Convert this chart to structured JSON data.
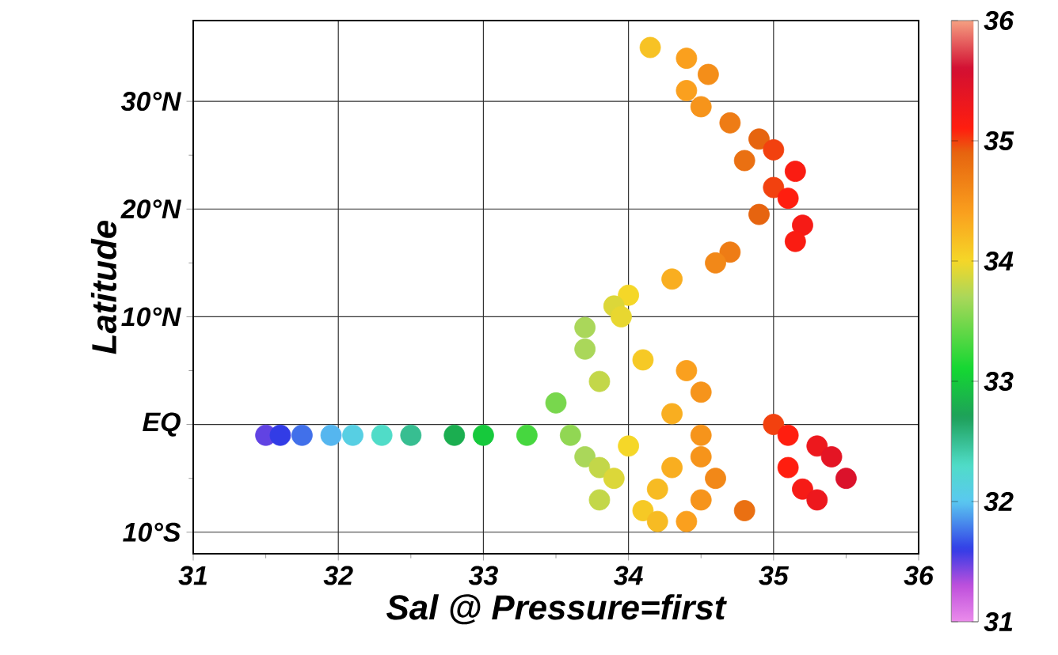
{
  "chart_data": {
    "type": "scatter",
    "xlabel": "Sal @ Pressure=first",
    "ylabel": "Latitude",
    "x": [
      34.15,
      34.4,
      34.55,
      34.4,
      34.5,
      34.7,
      34.9,
      35.0,
      34.8,
      35.15,
      35.0,
      35.1,
      34.9,
      35.2,
      35.15,
      34.7,
      34.6,
      34.3,
      34.0,
      33.9,
      33.95,
      33.7,
      33.7,
      34.1,
      34.4,
      33.8,
      34.5,
      33.5,
      34.3,
      35.0,
      31.5,
      31.6,
      31.75,
      31.95,
      32.1,
      32.3,
      32.5,
      32.8,
      33.0,
      33.3,
      33.6,
      34.5,
      35.1,
      34.0,
      35.3,
      33.7,
      34.5,
      35.4,
      33.8,
      34.3,
      35.1,
      33.9,
      34.6,
      35.5,
      34.2,
      35.2,
      33.8,
      34.5,
      35.3,
      34.1,
      34.8,
      34.2,
      34.4
    ],
    "values": [
      35,
      34,
      32.5,
      31,
      29.5,
      28,
      26.5,
      25.5,
      24.5,
      23.5,
      22,
      21,
      19.5,
      18.5,
      17,
      16,
      15,
      13.5,
      12,
      11,
      10,
      9,
      7,
      6,
      5,
      4,
      3,
      2,
      1,
      0,
      -1,
      -1,
      -1,
      -1,
      -1,
      -1,
      -1,
      -1,
      -1,
      -1,
      -1,
      -1,
      -1,
      -2,
      -2,
      -3,
      -3,
      -3,
      -4,
      -4,
      -4,
      -5,
      -5,
      -5,
      -6,
      -6,
      -7,
      -7,
      -7,
      -8,
      -8,
      -9,
      -9
    ],
    "cvalues": [
      34.15,
      34.4,
      34.55,
      34.4,
      34.5,
      34.7,
      34.9,
      35.0,
      34.8,
      35.15,
      35.0,
      35.1,
      34.9,
      35.2,
      35.15,
      34.7,
      34.6,
      34.3,
      34.0,
      33.9,
      33.95,
      33.7,
      33.7,
      34.1,
      34.4,
      33.8,
      34.5,
      33.5,
      34.3,
      35.0,
      31.5,
      31.6,
      31.75,
      31.95,
      32.1,
      32.3,
      32.5,
      32.8,
      33.0,
      33.3,
      33.6,
      34.5,
      35.1,
      34.0,
      35.3,
      33.7,
      34.5,
      35.4,
      33.8,
      34.3,
      35.1,
      33.9,
      34.6,
      35.5,
      34.2,
      35.2,
      33.8,
      34.5,
      35.3,
      34.1,
      34.8,
      34.2,
      34.4
    ],
    "xlim": [
      31,
      36
    ],
    "xticks": [
      31,
      32,
      33,
      34,
      35,
      36
    ],
    "ylim": [
      -12,
      37.5
    ],
    "yticks": [
      {
        "value": -10,
        "label": "10°S"
      },
      {
        "value": 0,
        "label": "EQ"
      },
      {
        "value": 10,
        "label": "10°N"
      },
      {
        "value": 20,
        "label": "20°N"
      },
      {
        "value": 30,
        "label": "30°N"
      }
    ],
    "clim": [
      31,
      36
    ],
    "cticks": [
      31,
      32,
      33,
      34,
      35,
      36
    ],
    "grid": true,
    "marker": "circle"
  }
}
